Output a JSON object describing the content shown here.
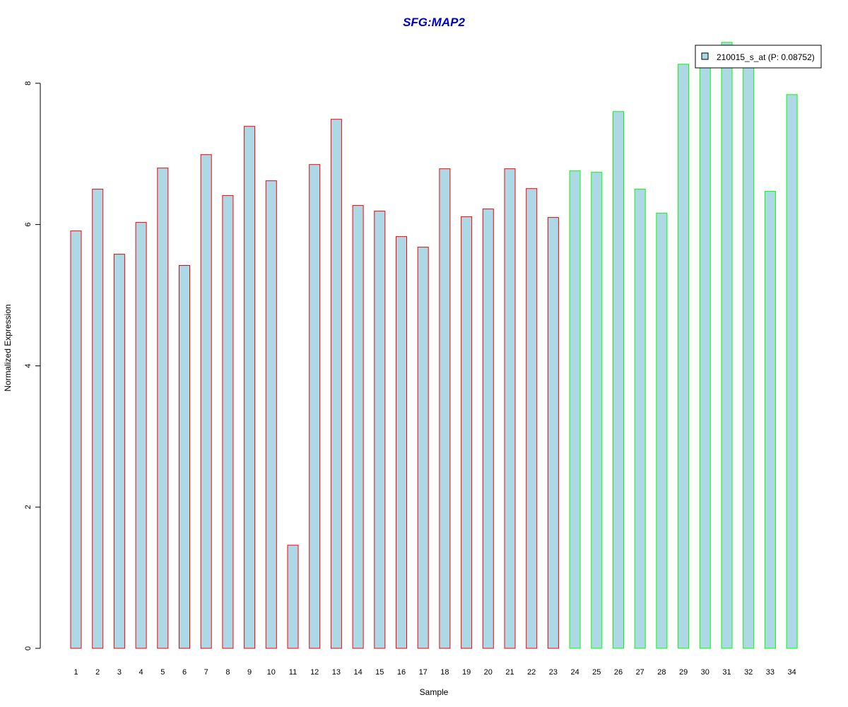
{
  "chart_data": {
    "type": "bar",
    "title": "SFG:MAP2",
    "title_color": "#0000CC",
    "xlabel": "Sample",
    "ylabel": "Normalized Expression",
    "ylim": [
      0,
      8.6
    ],
    "yticks": [
      0,
      2,
      4,
      6,
      8
    ],
    "grid": false,
    "legend_position": "top-right",
    "categories": [
      "1",
      "2",
      "3",
      "4",
      "5",
      "6",
      "7",
      "8",
      "9",
      "10",
      "11",
      "12",
      "13",
      "14",
      "15",
      "16",
      "17",
      "18",
      "19",
      "20",
      "21",
      "22",
      "23",
      "24",
      "25",
      "26",
      "27",
      "28",
      "29",
      "30",
      "31",
      "32",
      "33",
      "34"
    ],
    "series": [
      {
        "name": "210015_s_at (P: 0.08752)",
        "fill_color": "#ADD8E6",
        "values": [
          5.91,
          6.5,
          5.58,
          6.03,
          6.8,
          5.42,
          6.99,
          6.41,
          7.39,
          6.62,
          1.46,
          6.85,
          7.49,
          6.27,
          6.19,
          5.83,
          5.68,
          6.79,
          6.11,
          6.22,
          6.79,
          6.51,
          6.1,
          6.76,
          6.74,
          7.6,
          6.5,
          6.16,
          8.27,
          8.3,
          8.58,
          8.3,
          6.47,
          7.84
        ]
      }
    ],
    "border_colors": {
      "group_a": "#FF0000",
      "group_b": "#00FF00"
    },
    "group_b_start_index": 23
  }
}
